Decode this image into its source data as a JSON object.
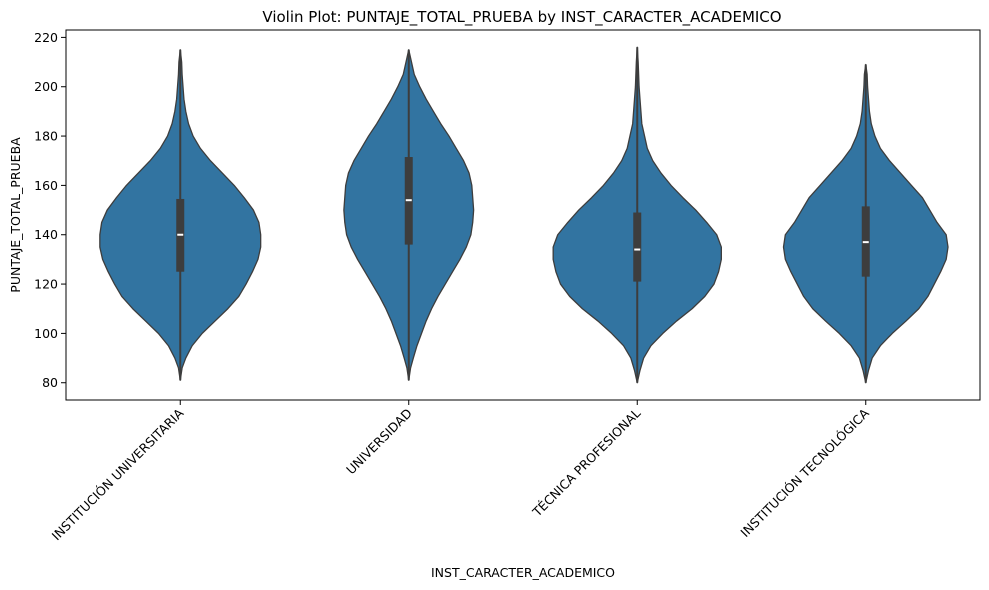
{
  "chart_data": {
    "type": "violin",
    "title": "Violin Plot: PUNTAJE_TOTAL_PRUEBA by INST_CARACTER_ACADEMICO",
    "xlabel": "INST_CARACTER_ACADEMICO",
    "ylabel": "PUNTAJE_TOTAL_PRUEBA",
    "ylim": [
      73,
      223
    ],
    "yticks": [
      80,
      100,
      120,
      140,
      160,
      180,
      200,
      220
    ],
    "yticklabels": [
      "80",
      "100",
      "120",
      "140",
      "160",
      "180",
      "200",
      "220"
    ],
    "categories": [
      "INSTITUCIÓN UNIVERSITARIA",
      "UNIVERSIDAD",
      "TÉCNICA PROFESIONAL",
      "INSTITUCIÓN TECNOLÓGICA"
    ],
    "grid": false,
    "legend": "none",
    "color": "#3274a1",
    "box_color": "#3d3d3d",
    "violins": [
      {
        "category": "INSTITUCIÓN UNIVERSITARIA",
        "min": 81,
        "q1": 125,
        "median": 140,
        "q3": 154.5,
        "max": 215,
        "density": [
          [
            81,
            0
          ],
          [
            86,
            2
          ],
          [
            90,
            6
          ],
          [
            95,
            13
          ],
          [
            100,
            24
          ],
          [
            105,
            38
          ],
          [
            110,
            52
          ],
          [
            115,
            64
          ],
          [
            120,
            72
          ],
          [
            125,
            79
          ],
          [
            130,
            85
          ],
          [
            135,
            88
          ],
          [
            140,
            88
          ],
          [
            145,
            86
          ],
          [
            150,
            80
          ],
          [
            155,
            70
          ],
          [
            160,
            59
          ],
          [
            165,
            46
          ],
          [
            170,
            33
          ],
          [
            175,
            22
          ],
          [
            180,
            14
          ],
          [
            185,
            9
          ],
          [
            190,
            6
          ],
          [
            195,
            4
          ],
          [
            200,
            3
          ],
          [
            205,
            2
          ],
          [
            210,
            1.5
          ],
          [
            215,
            0
          ]
        ]
      },
      {
        "category": "UNIVERSIDAD",
        "min": 81,
        "q1": 136,
        "median": 154,
        "q3": 171.5,
        "max": 215,
        "density": [
          [
            81,
            0
          ],
          [
            86,
            2
          ],
          [
            90,
            5
          ],
          [
            95,
            9
          ],
          [
            100,
            14
          ],
          [
            105,
            19
          ],
          [
            110,
            25
          ],
          [
            115,
            32
          ],
          [
            120,
            40
          ],
          [
            125,
            48
          ],
          [
            130,
            56
          ],
          [
            135,
            63
          ],
          [
            140,
            68
          ],
          [
            145,
            70
          ],
          [
            150,
            71
          ],
          [
            155,
            70
          ],
          [
            160,
            69
          ],
          [
            165,
            66
          ],
          [
            170,
            60
          ],
          [
            175,
            52
          ],
          [
            180,
            44
          ],
          [
            185,
            35
          ],
          [
            190,
            27
          ],
          [
            195,
            19
          ],
          [
            200,
            12
          ],
          [
            205,
            6
          ],
          [
            210,
            3
          ],
          [
            215,
            0
          ]
        ]
      },
      {
        "category": "TÉCNICA PROFESIONAL",
        "min": 80,
        "q1": 121,
        "median": 134,
        "q3": 149,
        "max": 216,
        "density": [
          [
            80,
            0
          ],
          [
            85,
            3
          ],
          [
            90,
            7
          ],
          [
            95,
            15
          ],
          [
            100,
            28
          ],
          [
            105,
            43
          ],
          [
            110,
            60
          ],
          [
            115,
            74
          ],
          [
            120,
            84
          ],
          [
            125,
            89
          ],
          [
            130,
            92
          ],
          [
            135,
            92
          ],
          [
            140,
            87
          ],
          [
            145,
            76
          ],
          [
            150,
            64
          ],
          [
            155,
            50
          ],
          [
            160,
            37
          ],
          [
            165,
            26
          ],
          [
            170,
            17
          ],
          [
            175,
            11
          ],
          [
            180,
            8
          ],
          [
            185,
            5
          ],
          [
            190,
            4
          ],
          [
            195,
            3
          ],
          [
            200,
            2
          ],
          [
            205,
            1.5
          ],
          [
            210,
            1
          ],
          [
            216,
            0
          ]
        ]
      },
      {
        "category": "INSTITUCIÓN TECNOLÓGICA",
        "min": 80,
        "q1": 123,
        "median": 137,
        "q3": 151.5,
        "max": 209,
        "density": [
          [
            80,
            0
          ],
          [
            85,
            3
          ],
          [
            90,
            7
          ],
          [
            95,
            16
          ],
          [
            100,
            29
          ],
          [
            105,
            44
          ],
          [
            110,
            58
          ],
          [
            115,
            68
          ],
          [
            120,
            75
          ],
          [
            125,
            82
          ],
          [
            130,
            88
          ],
          [
            135,
            90
          ],
          [
            140,
            88
          ],
          [
            145,
            78
          ],
          [
            150,
            70
          ],
          [
            155,
            62
          ],
          [
            160,
            50
          ],
          [
            165,
            38
          ],
          [
            170,
            26
          ],
          [
            175,
            16
          ],
          [
            180,
            10
          ],
          [
            185,
            6
          ],
          [
            190,
            4
          ],
          [
            195,
            3
          ],
          [
            200,
            2
          ],
          [
            205,
            1.5
          ],
          [
            209,
            0
          ]
        ]
      }
    ]
  }
}
